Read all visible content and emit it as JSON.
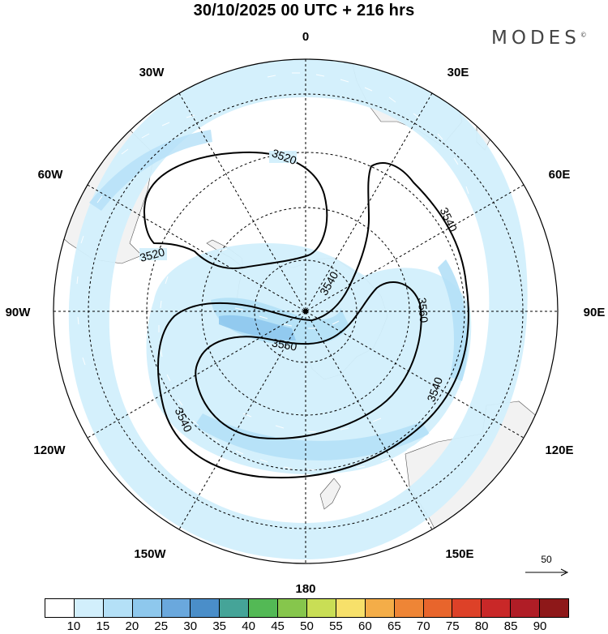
{
  "title": "30/10/2025  00 UTC  + 216 hrs",
  "brand": "MODES",
  "brand_mark": "©",
  "map": {
    "projection": "polar stereographic, South Pole centered",
    "longitude_labels": {
      "top": "0",
      "top_right": "30E",
      "right_upper": "60E",
      "right": "90E",
      "right_lower": "120E",
      "bottom_right": "150E",
      "bottom": "180",
      "bottom_left": "150W",
      "left_lower": "120W",
      "left": "90W",
      "left_upper": "60W",
      "top_left": "30W"
    },
    "contour_labels": {
      "c1": "3520",
      "c2": "3520",
      "c3": "3540",
      "c4": "3540",
      "c5": "3540",
      "c6": "3540",
      "c7": "3560",
      "c8": "3560"
    },
    "reference_vector_label": "50"
  },
  "colorbar": {
    "colors": [
      "#ffffff",
      "#d2effc",
      "#b4e0f7",
      "#8ec8ed",
      "#6aa8dd",
      "#4a8ec9",
      "#45a498",
      "#53b955",
      "#86c64c",
      "#c9de55",
      "#f7e06a",
      "#f4ad48",
      "#ee8536",
      "#e8652c",
      "#dd4128",
      "#c92828",
      "#b01d26",
      "#8e1819"
    ],
    "tick_labels": [
      "10",
      "15",
      "20",
      "25",
      "30",
      "35",
      "40",
      "45",
      "50",
      "55",
      "60",
      "65",
      "70",
      "75",
      "80",
      "85",
      "90"
    ]
  }
}
